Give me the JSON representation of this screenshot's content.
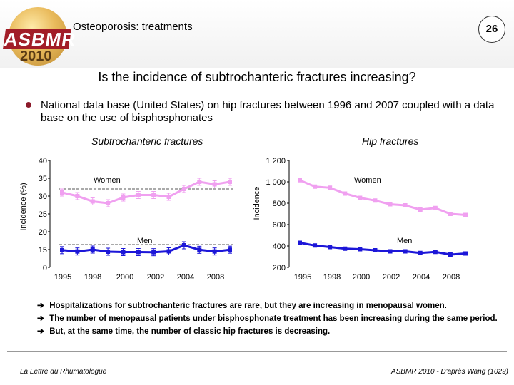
{
  "header": {
    "logo_text": "ASBMR",
    "logo_year": "2010",
    "title": "Osteoporosis: treatments",
    "page_number": "26"
  },
  "slide_title": "Is the incidence of subtrochanteric fractures increasing?",
  "bullet_text": "National data base  (United States) on hip fractures between 1996 and 2007 coupled with a data base on the use of bisphosphonates",
  "chart_data": [
    {
      "type": "line",
      "title": "Subtrochanteric fractures",
      "ylabel": "Incidence (%)",
      "ylim": [
        0,
        40
      ],
      "yticks": [
        "0",
        "15",
        "20",
        "25",
        "30",
        "35",
        "40"
      ],
      "xticks": [
        "1995",
        "1998",
        "2000",
        "2002",
        "2004",
        "2008"
      ],
      "x": [
        1996,
        1997,
        1998,
        1999,
        2000,
        2001,
        2002,
        2003,
        2004,
        2005,
        2006,
        2007
      ],
      "series": [
        {
          "name": "Women",
          "color": "#f0a0f0",
          "values": [
            31,
            30,
            28.5,
            28,
            29.6,
            30.3,
            30.3,
            29.8,
            32,
            34,
            33.3,
            34
          ]
        },
        {
          "name": "Men",
          "color": "#1c16d8",
          "values": [
            14.5,
            13.4,
            15,
            13.2,
            12.9,
            12.9,
            12.8,
            13.5,
            16.2,
            14.8,
            13.4,
            14.9
          ]
        }
      ]
    },
    {
      "type": "line",
      "title": "Hip fractures",
      "ylabel": "Incidence",
      "ylim": [
        200,
        1200
      ],
      "yticks": [
        "200",
        "400",
        "600",
        "800",
        "1 000",
        "1 200"
      ],
      "xticks": [
        "1995",
        "1998",
        "2000",
        "2002",
        "2004",
        "2008"
      ],
      "x": [
        1996,
        1997,
        1998,
        1999,
        2000,
        2001,
        2002,
        2003,
        2004,
        2005,
        2006,
        2007
      ],
      "series": [
        {
          "name": "Women",
          "color": "#f0a0f0",
          "values": [
            1015,
            955,
            945,
            890,
            850,
            825,
            790,
            780,
            740,
            755,
            700,
            690
          ]
        },
        {
          "name": "Men",
          "color": "#1c16d8",
          "values": [
            430,
            405,
            390,
            375,
            370,
            360,
            350,
            350,
            335,
            345,
            320,
            330
          ]
        }
      ]
    }
  ],
  "conclusions": [
    "Hospitalizations for subtrochanteric fractures are rare, but they are increasing in menopausal women.",
    "The number of  menopausal patients under bisphosphonate treatment  has been increasing during the same period.",
    "But, at the same time, the number of classic hip fractures is decreasing."
  ],
  "footer": {
    "left": "La Lettre du Rhumatologue",
    "right": "ASBMR 2010 - D'après Wang (1029)"
  },
  "colors": {
    "bullet": "#8b1a2a",
    "women": "#f0a0f0",
    "men": "#1c16d8"
  }
}
